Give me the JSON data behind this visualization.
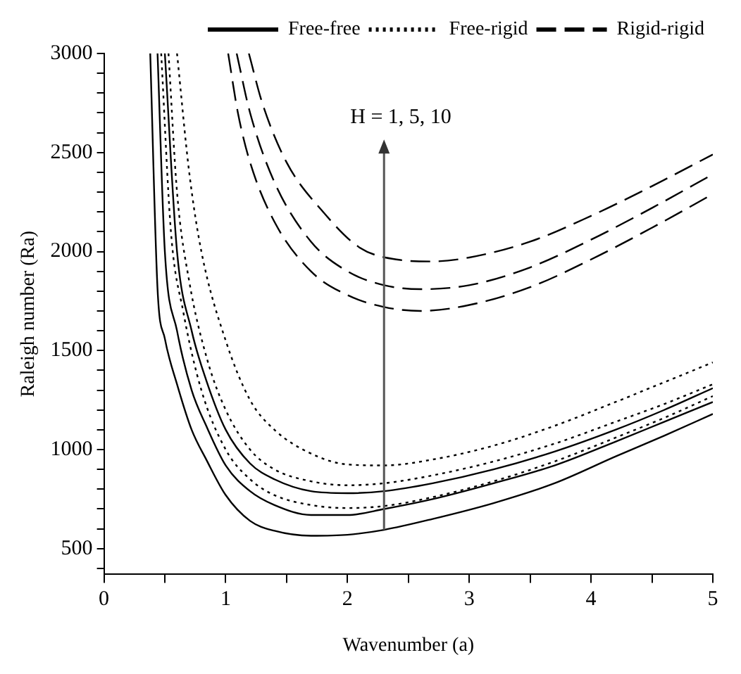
{
  "chart_data": {
    "type": "line",
    "xlabel": "Wavenumber (a)",
    "ylabel": "Raleigh number (Ra)",
    "xlim": [
      0,
      5
    ],
    "xticks": [
      0,
      {
        "value": 0.5,
        "label": null
      },
      1,
      {
        "value": 1.5,
        "label": null
      },
      2,
      {
        "value": 2.5,
        "label": null
      },
      3,
      {
        "value": 3.5,
        "label": null
      },
      4,
      {
        "value": 4.5,
        "label": null
      },
      5
    ],
    "ylim": [
      370,
      3000
    ],
    "yticks": [
      {
        "value": 400,
        "label": null
      },
      500,
      {
        "value": 600,
        "label": null
      },
      {
        "value": 700,
        "label": null
      },
      {
        "value": 800,
        "label": null
      },
      {
        "value": 900,
        "label": null
      },
      1000,
      {
        "value": 1100,
        "label": null
      },
      {
        "value": 1200,
        "label": null
      },
      {
        "value": 1300,
        "label": null
      },
      {
        "value": 1400,
        "label": null
      },
      1500,
      {
        "value": 1600,
        "label": null
      },
      {
        "value": 1700,
        "label": null
      },
      {
        "value": 1800,
        "label": null
      },
      {
        "value": 1900,
        "label": null
      },
      2000,
      {
        "value": 2100,
        "label": null
      },
      {
        "value": 2200,
        "label": null
      },
      {
        "value": 2300,
        "label": null
      },
      {
        "value": 2400,
        "label": null
      },
      2500,
      {
        "value": 2600,
        "label": null
      },
      {
        "value": 2700,
        "label": null
      },
      {
        "value": 2800,
        "label": null
      },
      {
        "value": 2900,
        "label": null
      },
      3000
    ],
    "grid": false,
    "legend": "top",
    "marker": "none",
    "annotations": [
      "H = 1, 5, 10"
    ],
    "series": [
      {
        "name": "Free-free",
        "color": "#000000",
        "line_style": "solid",
        "x": [
          0.38,
          0.44,
          0.5,
          0.6,
          0.72,
          0.84,
          1.0,
          1.2,
          1.4,
          1.7,
          2.0,
          2.3,
          2.7,
          3.2,
          3.7,
          4.2,
          4.6,
          5.0
        ],
        "values": [
          3000,
          1810,
          1560,
          1330,
          1100,
          950,
          770,
          640,
          590,
          565,
          570,
          595,
          650,
          730,
          830,
          965,
          1070,
          1180
        ]
      },
      {
        "color": "#000000",
        "line_style": "solid",
        "x": [
          0.44,
          0.5,
          0.6,
          0.72,
          0.84,
          1.0,
          1.2,
          1.4,
          1.7,
          2.0,
          2.3,
          2.7,
          3.2,
          3.7,
          4.2,
          4.6,
          5.0
        ],
        "values": [
          3000,
          2000,
          1600,
          1300,
          1120,
          920,
          790,
          720,
          670,
          670,
          700,
          750,
          830,
          920,
          1040,
          1140,
          1240
        ]
      },
      {
        "color": "#000000",
        "line_style": "solid",
        "x": [
          0.5,
          0.6,
          0.72,
          0.84,
          1.0,
          1.2,
          1.4,
          1.7,
          2.0,
          2.3,
          2.7,
          3.2,
          3.7,
          4.2,
          4.6,
          5.0
        ],
        "values": [
          3000,
          2000,
          1600,
          1350,
          1100,
          930,
          850,
          790,
          780,
          790,
          830,
          900,
          990,
          1100,
          1200,
          1310
        ]
      },
      {
        "name": "Free-rigid",
        "color": "#000000",
        "line_style": "dotted",
        "x": [
          0.47,
          0.55,
          0.65,
          0.8,
          1.0,
          1.2,
          1.4,
          1.7,
          2.0,
          2.3,
          2.7,
          3.2,
          3.7,
          4.2,
          4.6,
          5.0
        ],
        "values": [
          3000,
          2100,
          1700,
          1300,
          1000,
          850,
          770,
          720,
          705,
          715,
          760,
          840,
          940,
          1060,
          1160,
          1270
        ]
      },
      {
        "color": "#000000",
        "line_style": "dotted",
        "x": [
          0.53,
          0.6,
          0.7,
          0.85,
          1.0,
          1.2,
          1.4,
          1.7,
          2.0,
          2.3,
          2.7,
          3.2,
          3.7,
          4.2,
          4.6,
          5.0
        ],
        "values": [
          3000,
          2300,
          1850,
          1450,
          1200,
          1000,
          900,
          840,
          820,
          830,
          870,
          940,
          1030,
          1140,
          1230,
          1330
        ]
      },
      {
        "color": "#000000",
        "line_style": "dotted",
        "x": [
          0.6,
          0.7,
          0.8,
          1.0,
          1.2,
          1.4,
          1.7,
          2.0,
          2.3,
          2.7,
          3.2,
          3.7,
          4.2,
          4.6,
          5.0
        ],
        "values": [
          3000,
          2400,
          2000,
          1550,
          1250,
          1100,
          980,
          925,
          920,
          950,
          1020,
          1120,
          1240,
          1340,
          1440
        ]
      },
      {
        "name": "Rigid-rigid",
        "color": "#000000",
        "line_style": "dashed",
        "x": [
          1.02,
          1.1,
          1.2,
          1.4,
          1.7,
          2.0,
          2.3,
          2.6,
          3.0,
          3.5,
          4.0,
          4.5,
          5.0
        ],
        "values": [
          3000,
          2700,
          2450,
          2150,
          1900,
          1780,
          1720,
          1700,
          1730,
          1820,
          1960,
          2120,
          2290
        ]
      },
      {
        "color": "#000000",
        "line_style": "dashed",
        "x": [
          1.09,
          1.2,
          1.4,
          1.7,
          2.0,
          2.3,
          2.6,
          3.0,
          3.5,
          4.0,
          4.5,
          5.0
        ],
        "values": [
          3000,
          2700,
          2350,
          2050,
          1900,
          1830,
          1810,
          1830,
          1920,
          2060,
          2220,
          2390
        ]
      },
      {
        "color": "#000000",
        "line_style": "dashed",
        "x": [
          1.19,
          1.3,
          1.5,
          1.8,
          2.1,
          2.4,
          2.7,
          3.0,
          3.5,
          4.0,
          4.5,
          5.0
        ],
        "values": [
          3000,
          2750,
          2450,
          2200,
          2020,
          1960,
          1950,
          1970,
          2050,
          2180,
          2330,
          2490
        ]
      }
    ]
  }
}
